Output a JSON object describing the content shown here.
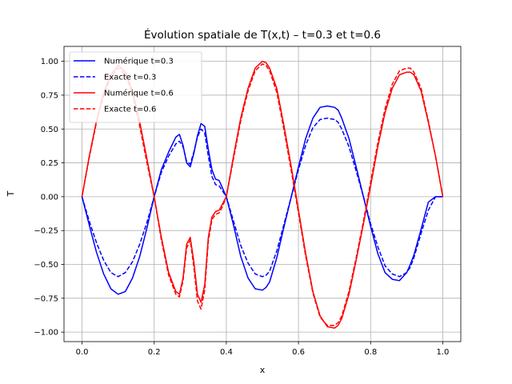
{
  "chart_data": {
    "type": "line",
    "title": "Évolution spatiale de T(x,t) – t=0.3 et t=0.6",
    "xlabel": "x",
    "ylabel": "T",
    "xlim": [
      -0.05,
      1.05
    ],
    "ylim": [
      -1.07,
      1.11
    ],
    "xticks": [
      "0.0",
      "0.2",
      "0.4",
      "0.6",
      "0.8",
      "1.0"
    ],
    "yticks": [
      "−1.00",
      "−0.75",
      "−0.50",
      "−0.25",
      "0.00",
      "0.25",
      "0.50",
      "0.75",
      "1.00"
    ],
    "grid": true,
    "legend_position": "top-left",
    "series": [
      {
        "name": "Numérique t=0.3",
        "color": "#0000ff",
        "dash": "solid",
        "x": [
          0.0,
          0.02,
          0.04,
          0.06,
          0.08,
          0.1,
          0.12,
          0.14,
          0.16,
          0.18,
          0.2,
          0.22,
          0.24,
          0.26,
          0.27,
          0.28,
          0.29,
          0.3,
          0.31,
          0.32,
          0.33,
          0.34,
          0.35,
          0.36,
          0.37,
          0.38,
          0.39,
          0.4,
          0.42,
          0.44,
          0.46,
          0.48,
          0.5,
          0.51,
          0.52,
          0.54,
          0.56,
          0.58,
          0.6,
          0.62,
          0.64,
          0.66,
          0.68,
          0.7,
          0.71,
          0.72,
          0.74,
          0.76,
          0.78,
          0.8,
          0.82,
          0.84,
          0.86,
          0.88,
          0.9,
          0.91,
          0.92,
          0.94,
          0.96,
          0.98,
          1.0
        ],
        "y": [
          0.0,
          -0.21,
          -0.41,
          -0.57,
          -0.68,
          -0.72,
          -0.7,
          -0.6,
          -0.44,
          -0.23,
          0.0,
          0.2,
          0.33,
          0.44,
          0.46,
          0.38,
          0.25,
          0.22,
          0.32,
          0.45,
          0.54,
          0.52,
          0.35,
          0.2,
          0.13,
          0.12,
          0.06,
          0.0,
          -0.21,
          -0.44,
          -0.6,
          -0.68,
          -0.69,
          -0.67,
          -0.63,
          -0.45,
          -0.22,
          0.0,
          0.22,
          0.43,
          0.58,
          0.66,
          0.67,
          0.66,
          0.64,
          0.58,
          0.43,
          0.22,
          0.0,
          -0.22,
          -0.42,
          -0.56,
          -0.61,
          -0.62,
          -0.56,
          -0.5,
          -0.43,
          -0.24,
          -0.04,
          0.0,
          0.0
        ]
      },
      {
        "name": "Exacte t=0.3",
        "color": "#0000ff",
        "dash": "dashed",
        "x": [
          0.0,
          0.02,
          0.04,
          0.06,
          0.08,
          0.1,
          0.12,
          0.14,
          0.16,
          0.18,
          0.2,
          0.22,
          0.24,
          0.26,
          0.27,
          0.28,
          0.29,
          0.3,
          0.31,
          0.32,
          0.33,
          0.34,
          0.35,
          0.36,
          0.37,
          0.38,
          0.39,
          0.4,
          0.42,
          0.44,
          0.46,
          0.48,
          0.5,
          0.51,
          0.52,
          0.54,
          0.56,
          0.58,
          0.6,
          0.62,
          0.64,
          0.66,
          0.68,
          0.7,
          0.71,
          0.72,
          0.74,
          0.76,
          0.78,
          0.8,
          0.82,
          0.84,
          0.86,
          0.88,
          0.9,
          0.91,
          0.92,
          0.94,
          0.96,
          0.98,
          1.0
        ],
        "y": [
          0.0,
          -0.18,
          -0.34,
          -0.47,
          -0.56,
          -0.59,
          -0.56,
          -0.48,
          -0.35,
          -0.19,
          0.0,
          0.18,
          0.3,
          0.39,
          0.41,
          0.37,
          0.26,
          0.24,
          0.33,
          0.44,
          0.5,
          0.47,
          0.3,
          0.15,
          0.09,
          0.08,
          0.04,
          0.0,
          -0.18,
          -0.36,
          -0.49,
          -0.57,
          -0.59,
          -0.58,
          -0.55,
          -0.4,
          -0.2,
          0.0,
          0.2,
          0.38,
          0.51,
          0.57,
          0.58,
          0.57,
          0.55,
          0.5,
          0.37,
          0.19,
          0.0,
          -0.2,
          -0.37,
          -0.51,
          -0.57,
          -0.59,
          -0.56,
          -0.52,
          -0.45,
          -0.27,
          -0.1,
          0.0,
          0.0
        ]
      },
      {
        "name": "Numérique t=0.6",
        "color": "#ff0000",
        "dash": "solid",
        "x": [
          0.0,
          0.02,
          0.04,
          0.06,
          0.08,
          0.1,
          0.12,
          0.14,
          0.16,
          0.18,
          0.2,
          0.22,
          0.24,
          0.26,
          0.27,
          0.28,
          0.29,
          0.3,
          0.31,
          0.32,
          0.33,
          0.34,
          0.35,
          0.36,
          0.37,
          0.38,
          0.39,
          0.4,
          0.42,
          0.44,
          0.46,
          0.48,
          0.5,
          0.51,
          0.52,
          0.54,
          0.56,
          0.58,
          0.6,
          0.62,
          0.64,
          0.66,
          0.68,
          0.7,
          0.71,
          0.72,
          0.74,
          0.76,
          0.78,
          0.8,
          0.82,
          0.84,
          0.86,
          0.88,
          0.9,
          0.91,
          0.92,
          0.94,
          0.96,
          0.98,
          1.0
        ],
        "y": [
          0.0,
          0.3,
          0.56,
          0.77,
          0.9,
          0.97,
          0.92,
          0.78,
          0.55,
          0.28,
          0.0,
          -0.3,
          -0.56,
          -0.7,
          -0.72,
          -0.6,
          -0.35,
          -0.3,
          -0.48,
          -0.72,
          -0.78,
          -0.65,
          -0.3,
          -0.15,
          -0.11,
          -0.1,
          -0.05,
          0.0,
          0.3,
          0.58,
          0.8,
          0.95,
          1.0,
          0.99,
          0.95,
          0.8,
          0.52,
          0.22,
          -0.1,
          -0.42,
          -0.7,
          -0.88,
          -0.96,
          -0.97,
          -0.95,
          -0.9,
          -0.72,
          -0.47,
          -0.2,
          0.08,
          0.37,
          0.62,
          0.8,
          0.9,
          0.92,
          0.92,
          0.9,
          0.78,
          0.55,
          0.3,
          0.0
        ]
      },
      {
        "name": "Exacte t=0.6",
        "color": "#ff0000",
        "dash": "dashed",
        "x": [
          0.0,
          0.02,
          0.04,
          0.06,
          0.08,
          0.1,
          0.12,
          0.14,
          0.16,
          0.18,
          0.2,
          0.22,
          0.24,
          0.26,
          0.27,
          0.28,
          0.29,
          0.3,
          0.31,
          0.32,
          0.33,
          0.34,
          0.35,
          0.36,
          0.37,
          0.38,
          0.39,
          0.4,
          0.42,
          0.44,
          0.46,
          0.48,
          0.5,
          0.51,
          0.52,
          0.54,
          0.56,
          0.58,
          0.6,
          0.62,
          0.64,
          0.66,
          0.68,
          0.7,
          0.71,
          0.72,
          0.74,
          0.76,
          0.78,
          0.8,
          0.82,
          0.84,
          0.86,
          0.88,
          0.9,
          0.91,
          0.92,
          0.94,
          0.96,
          0.98,
          1.0
        ],
        "y": [
          0.0,
          0.29,
          0.55,
          0.75,
          0.88,
          0.95,
          0.9,
          0.76,
          0.52,
          0.25,
          0.0,
          -0.32,
          -0.58,
          -0.72,
          -0.74,
          -0.62,
          -0.38,
          -0.32,
          -0.52,
          -0.77,
          -0.83,
          -0.69,
          -0.33,
          -0.17,
          -0.13,
          -0.12,
          -0.07,
          0.0,
          0.28,
          0.56,
          0.78,
          0.93,
          0.98,
          0.97,
          0.93,
          0.77,
          0.49,
          0.19,
          -0.12,
          -0.44,
          -0.71,
          -0.89,
          -0.95,
          -0.95,
          -0.93,
          -0.88,
          -0.7,
          -0.45,
          -0.18,
          0.11,
          0.4,
          0.65,
          0.83,
          0.93,
          0.95,
          0.95,
          0.92,
          0.8,
          0.56,
          0.3,
          0.0
        ]
      }
    ]
  }
}
